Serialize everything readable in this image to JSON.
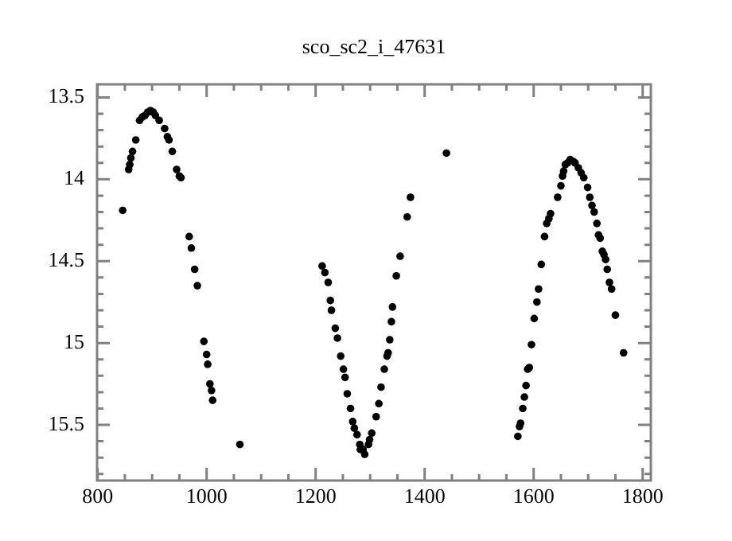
{
  "chart_data": {
    "type": "scatter",
    "title": "sco_sc2_i_47631",
    "marker": "circle",
    "grid": false,
    "legend": false,
    "xlim": [
      799,
      1815
    ],
    "ylim": [
      15.84,
      13.42
    ],
    "xticks": [
      800,
      {
        "value": 850,
        "label": null
      },
      {
        "value": 900,
        "label": null
      },
      {
        "value": 950,
        "label": null
      },
      1000,
      {
        "value": 1050,
        "label": null
      },
      {
        "value": 1100,
        "label": null
      },
      {
        "value": 1150,
        "label": null
      },
      1200,
      {
        "value": 1250,
        "label": null
      },
      {
        "value": 1300,
        "label": null
      },
      {
        "value": 1350,
        "label": null
      },
      1400,
      {
        "value": 1450,
        "label": null
      },
      {
        "value": 1500,
        "label": null
      },
      {
        "value": 1550,
        "label": null
      },
      1600,
      {
        "value": 1650,
        "label": null
      },
      {
        "value": 1700,
        "label": null
      },
      {
        "value": 1750,
        "label": null
      },
      1800
    ],
    "yticks": [
      13.5,
      {
        "value": 13.6,
        "label": null
      },
      {
        "value": 13.7,
        "label": null
      },
      {
        "value": 13.8,
        "label": null
      },
      {
        "value": 13.9,
        "label": null
      },
      14,
      {
        "value": 14.1,
        "label": null
      },
      {
        "value": 14.2,
        "label": null
      },
      {
        "value": 14.3,
        "label": null
      },
      {
        "value": 14.4,
        "label": null
      },
      14.5,
      {
        "value": 14.6,
        "label": null
      },
      {
        "value": 14.7,
        "label": null
      },
      {
        "value": 14.8,
        "label": null
      },
      {
        "value": 14.9,
        "label": null
      },
      15,
      {
        "value": 15.1,
        "label": null
      },
      {
        "value": 15.2,
        "label": null
      },
      {
        "value": 15.3,
        "label": null
      },
      {
        "value": 15.4,
        "label": null
      },
      15.5,
      {
        "value": 15.6,
        "label": null
      },
      {
        "value": 15.7,
        "label": null
      },
      {
        "value": 15.8,
        "label": null
      }
    ],
    "series": [
      {
        "color": "#000000",
        "x": [
          846,
          857,
          859,
          861,
          864,
          870,
          877,
          882,
          887,
          892,
          897,
          902,
          906,
          913,
          923,
          928,
          931,
          937,
          945,
          950,
          953,
          968,
          972,
          978,
          983,
          995,
          1000,
          1002,
          1006,
          1009,
          1011,
          1061,
          1212,
          1217,
          1223,
          1227,
          1229,
          1236,
          1240,
          1246,
          1251,
          1254,
          1258,
          1264,
          1268,
          1271,
          1276,
          1281,
          1287,
          1282,
          1290,
          1297,
          1299,
          1303,
          1311,
          1316,
          1320,
          1326,
          1331,
          1333,
          1336,
          1339,
          1341,
          1348,
          1355,
          1368,
          1374,
          1440,
          1571,
          1574,
          1576,
          1580,
          1583,
          1586,
          1589,
          1592,
          1596,
          1601,
          1606,
          1609,
          1614,
          1620,
          1624,
          1628,
          1631,
          1644,
          1650,
          1653,
          1655,
          1658,
          1662,
          1667,
          1672,
          1676,
          1682,
          1687,
          1692,
          1699,
          1703,
          1707,
          1711,
          1716,
          1719,
          1722,
          1726,
          1729,
          1732,
          1735,
          1739,
          1743,
          1750,
          1765
        ],
        "values": [
          14.19,
          13.94,
          13.91,
          13.87,
          13.83,
          13.76,
          13.64,
          13.62,
          13.61,
          13.59,
          13.58,
          13.59,
          13.61,
          13.64,
          13.69,
          13.74,
          13.76,
          13.83,
          13.94,
          13.98,
          13.99,
          14.35,
          14.42,
          14.55,
          14.65,
          14.99,
          15.07,
          15.13,
          15.25,
          15.29,
          15.35,
          15.62,
          14.53,
          14.57,
          14.63,
          14.74,
          14.8,
          14.91,
          14.97,
          15.08,
          15.16,
          15.21,
          15.31,
          15.4,
          15.48,
          15.52,
          15.56,
          15.62,
          15.65,
          15.65,
          15.68,
          15.62,
          15.59,
          15.55,
          15.45,
          15.37,
          15.27,
          15.16,
          15.08,
          15.06,
          14.98,
          14.87,
          14.78,
          14.59,
          14.47,
          14.23,
          14.11,
          13.84,
          15.57,
          15.51,
          15.49,
          15.4,
          15.33,
          15.26,
          15.16,
          15.15,
          15.01,
          14.85,
          14.75,
          14.67,
          14.52,
          14.35,
          14.27,
          14.24,
          14.21,
          14.11,
          14.04,
          13.98,
          13.95,
          13.91,
          13.9,
          13.88,
          13.89,
          13.9,
          13.93,
          13.96,
          13.99,
          14.05,
          14.11,
          14.16,
          14.2,
          14.27,
          14.34,
          14.36,
          14.44,
          14.46,
          14.49,
          14.55,
          14.63,
          14.67,
          14.83,
          15.06
        ]
      }
    ]
  }
}
